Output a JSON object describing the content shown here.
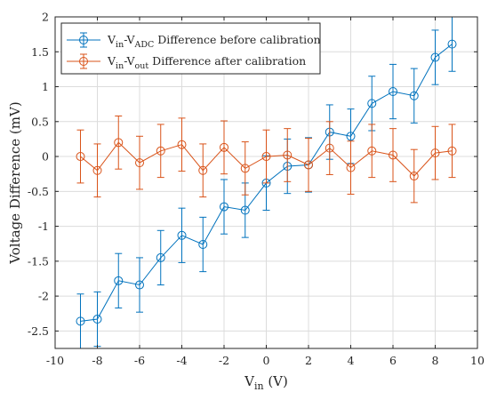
{
  "chart_data": {
    "type": "line",
    "xlabel": {
      "main": "V",
      "sub": "in",
      "tail": " (V)"
    },
    "ylabel": "Voltage Difference (mV)",
    "xlim": [
      -10,
      10
    ],
    "ylim": [
      -2.75,
      2
    ],
    "xticks": [
      -10,
      -8,
      -6,
      -4,
      -2,
      0,
      2,
      4,
      6,
      8,
      10
    ],
    "xtick_labels": [
      "-10",
      "-8",
      "-6",
      "-4",
      "-2",
      "0",
      "2",
      "4",
      "6",
      "8",
      "10"
    ],
    "yticks": [
      -2.5,
      -2,
      -1.5,
      -1,
      -0.5,
      0,
      0.5,
      1,
      1.5,
      2
    ],
    "ytick_labels": [
      "-2.5",
      "-2",
      "-1.5",
      "-1",
      "-0.5",
      "0",
      "0.5",
      "1",
      "1.5",
      "2"
    ],
    "grid": true,
    "legend_position": "top-left",
    "x": [
      -8.8,
      -8,
      -7,
      -6,
      -5,
      -4,
      -3,
      -2,
      -1,
      0,
      1,
      2,
      3,
      4,
      5,
      6,
      7,
      8,
      8.8
    ],
    "series": [
      {
        "legend": {
          "p1": "V",
          "s1": "in",
          "p2": "-V",
          "s2": "ADC",
          "p3": " Difference before calibration"
        },
        "color": "#0072bd",
        "values": [
          -2.36,
          -2.33,
          -1.78,
          -1.84,
          -1.45,
          -1.13,
          -1.26,
          -0.72,
          -0.77,
          -0.38,
          -0.14,
          -0.12,
          0.35,
          0.29,
          0.76,
          0.93,
          0.87,
          1.42,
          1.61
        ],
        "error": 0.39
      },
      {
        "legend": {
          "p1": "V",
          "s1": "in",
          "p2": "-V",
          "s2": "out",
          "p3": " Difference after calibration"
        },
        "color": "#d95319",
        "values": [
          0.0,
          -0.2,
          0.2,
          -0.09,
          0.08,
          0.17,
          -0.2,
          0.13,
          -0.17,
          0.0,
          0.02,
          -0.12,
          0.12,
          -0.16,
          0.08,
          0.02,
          -0.28,
          0.05,
          0.08
        ],
        "error": 0.38
      }
    ]
  }
}
